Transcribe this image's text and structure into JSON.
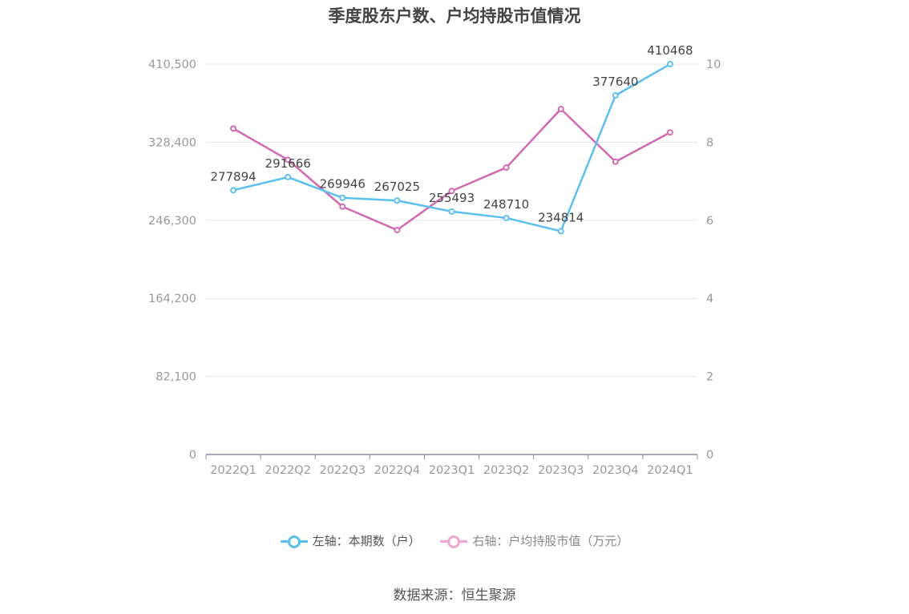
{
  "chart_data": {
    "type": "line",
    "title": "季度股东户数、户均持股市值情况",
    "categories": [
      "2022Q1",
      "2022Q2",
      "2022Q3",
      "2022Q4",
      "2023Q1",
      "2023Q2",
      "2023Q3",
      "2023Q4",
      "2024Q1"
    ],
    "series": [
      {
        "name": "左轴：本期数（户）",
        "axis": "left",
        "color": "#5bc0f0",
        "values": [
          277894,
          291666,
          269946,
          267025,
          255493,
          248710,
          234814,
          377640,
          410468
        ],
        "labels": [
          "277894",
          "291666",
          "269946",
          "267025",
          "255493",
          "248710",
          "234814",
          "377640",
          "410468"
        ]
      },
      {
        "name": "右轴：户均持股市值（万元）",
        "axis": "right",
        "color": "#d36ab0",
        "values": [
          8.35,
          7.55,
          6.35,
          5.75,
          6.75,
          7.35,
          8.85,
          7.5,
          8.25
        ]
      }
    ],
    "y_left": {
      "min": 0,
      "max": 410500,
      "ticks": [
        "0",
        "82,100",
        "164,200",
        "246,300",
        "328,400",
        "410,500"
      ]
    },
    "y_right": {
      "min": 0,
      "max": 10,
      "ticks": [
        "0",
        "2",
        "4",
        "6",
        "8",
        "10"
      ]
    },
    "grid": true,
    "legend_position": "bottom"
  },
  "source": "数据来源：恒生聚源"
}
